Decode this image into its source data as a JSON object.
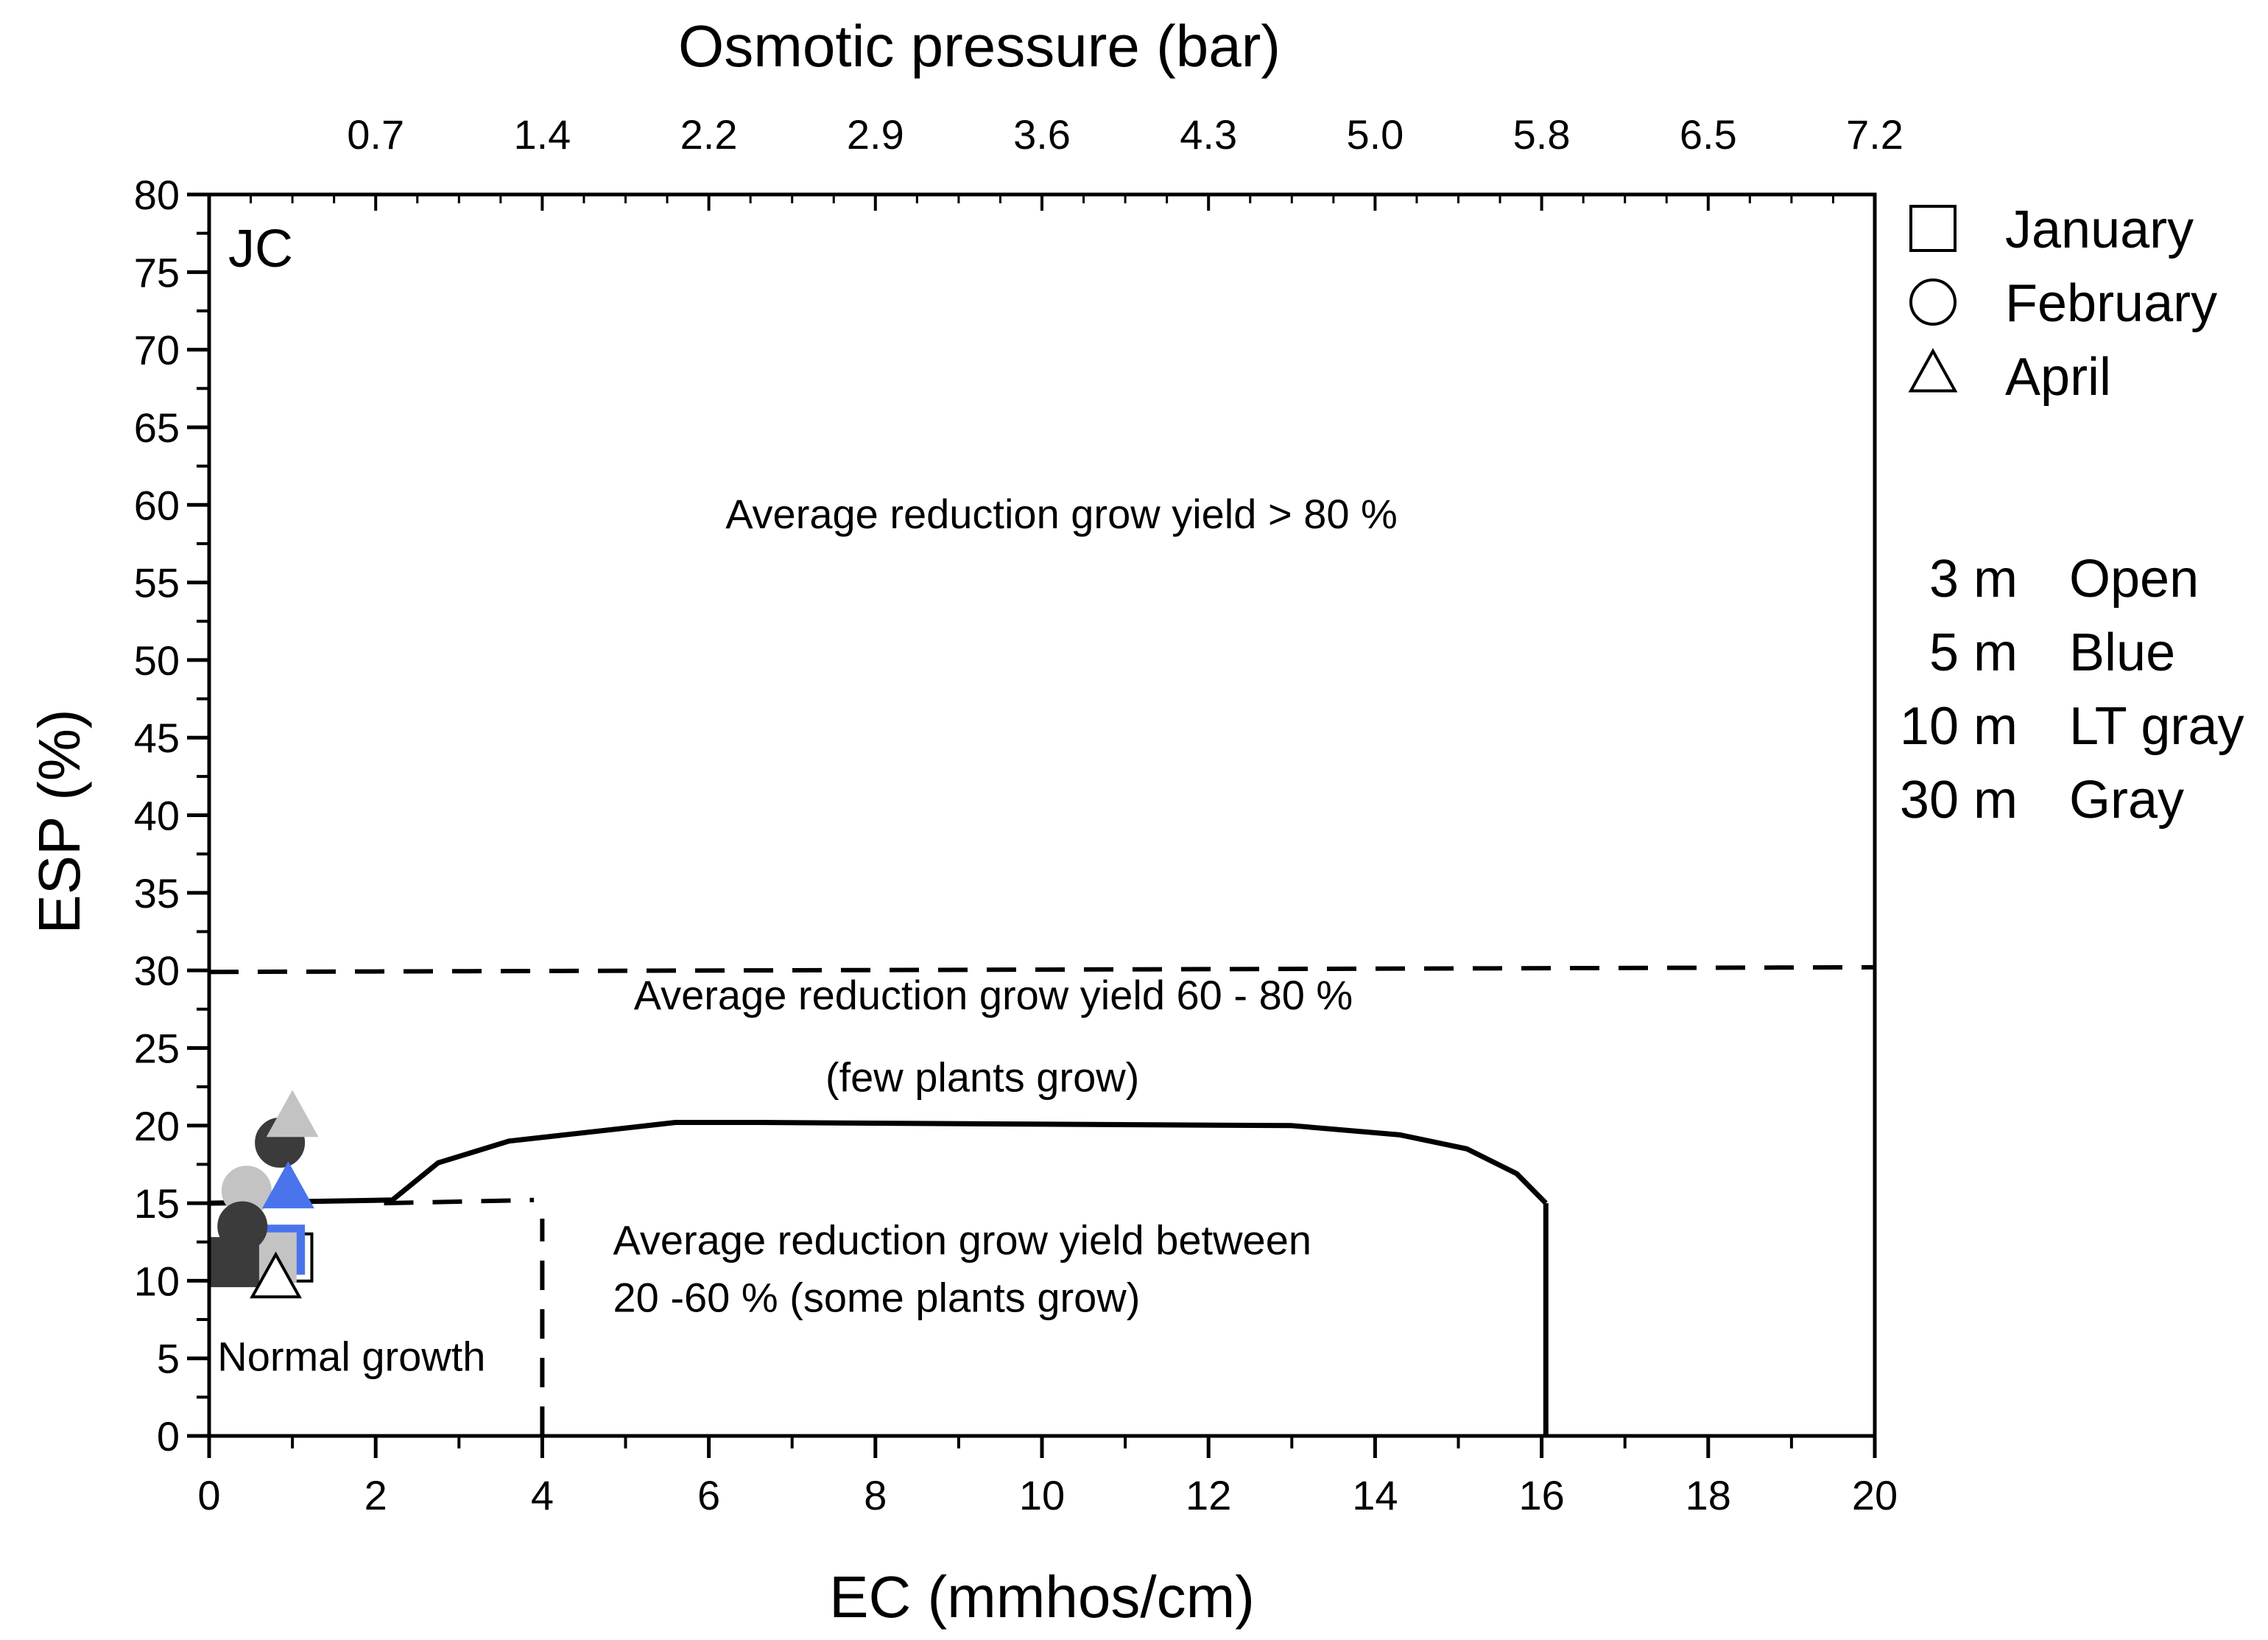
{
  "chart_data": {
    "type": "scatter",
    "panel_label": "JC",
    "x_axis": {
      "label": "EC (mmhos/cm)",
      "range": [
        0,
        20
      ],
      "major_ticks": [
        0,
        2,
        4,
        6,
        8,
        10,
        12,
        14,
        16,
        18,
        20
      ],
      "minor_step": 1
    },
    "y_axis": {
      "label": "ESP (%)",
      "range": [
        0,
        80
      ],
      "major_ticks": [
        0,
        5,
        10,
        15,
        20,
        25,
        30,
        35,
        40,
        45,
        50,
        55,
        60,
        65,
        70,
        75,
        80
      ],
      "minor_step": 2.5
    },
    "top_axis": {
      "label": "Osmotic pressure (bar)",
      "ticks": [
        {
          "ec": 2,
          "label": "0.7"
        },
        {
          "ec": 4,
          "label": "1.4"
        },
        {
          "ec": 6,
          "label": "2.2"
        },
        {
          "ec": 8,
          "label": "2.9"
        },
        {
          "ec": 10,
          "label": "3.6"
        },
        {
          "ec": 12,
          "label": "4.3"
        },
        {
          "ec": 14,
          "label": "5.0"
        },
        {
          "ec": 16,
          "label": "5.8"
        },
        {
          "ec": 18,
          "label": "6.5"
        },
        {
          "ec": 20,
          "label": "7.2"
        }
      ],
      "minor_step": 0.5
    },
    "grid": false,
    "regions": [
      {
        "name": "gt80",
        "label": "Average reduction grow yield > 80 %",
        "anchor": [
          6.2,
          58.5
        ]
      },
      {
        "name": "60-80",
        "label": "Average reduction grow yield 60 - 80 %",
        "anchor": [
          5.1,
          27.5
        ]
      },
      {
        "name": "few-plants",
        "label": "(few plants grow)",
        "anchor": [
          7.4,
          22.2
        ]
      },
      {
        "name": "20-60-line1",
        "label": "Average reduction grow yield between",
        "anchor": [
          4.85,
          11.7
        ]
      },
      {
        "name": "20-60-line2",
        "label": "20 -60 % (some plants grow)",
        "anchor": [
          4.85,
          8.0
        ]
      },
      {
        "name": "normal",
        "label": "Normal growth",
        "anchor": [
          0.1,
          4.2
        ]
      }
    ],
    "boundaries": [
      {
        "name": "esp-30-dashed",
        "style": "dashed",
        "points": [
          [
            0,
            29.9
          ],
          [
            20,
            30.2
          ]
        ]
      },
      {
        "name": "esp-15-dashed",
        "style": "dashed",
        "points": [
          [
            2.1,
            15
          ],
          [
            3.9,
            15.2
          ]
        ]
      },
      {
        "name": "ec-4-dashed",
        "style": "dashed",
        "points": [
          [
            4,
            0
          ],
          [
            4,
            14
          ]
        ]
      },
      {
        "name": "solid-curve",
        "style": "solid",
        "points": [
          [
            0,
            15
          ],
          [
            2.2,
            15.2
          ],
          [
            2.75,
            17.6
          ],
          [
            3.6,
            19
          ],
          [
            4.6,
            19.6
          ],
          [
            5.6,
            20.2
          ],
          [
            6.6,
            20.2
          ],
          [
            9.6,
            20.1
          ],
          [
            13,
            20
          ],
          [
            14.3,
            19.4
          ],
          [
            15.1,
            18.5
          ],
          [
            15.7,
            16.9
          ],
          [
            16.05,
            15
          ]
        ]
      },
      {
        "name": "ec-16-solid",
        "style": "solid",
        "points": [
          [
            16.05,
            15
          ],
          [
            16.05,
            0
          ]
        ]
      }
    ],
    "series": [
      {
        "name": "January 3 m",
        "month": "January",
        "depth": "3 m",
        "marker": "square",
        "color": "open",
        "points": [
          [
            0.95,
            11.5
          ]
        ]
      },
      {
        "name": "January 5 m",
        "month": "January",
        "depth": "5 m",
        "marker": "square",
        "color": "blue",
        "points": [
          [
            0.85,
            12.0
          ]
        ]
      },
      {
        "name": "January 10 m",
        "month": "January",
        "depth": "10 m",
        "marker": "square",
        "color": "light-gray",
        "points": [
          [
            0.75,
            11.5
          ]
        ]
      },
      {
        "name": "January 30 m",
        "month": "January",
        "depth": "30 m",
        "marker": "square",
        "color": "gray",
        "points": [
          [
            0.3,
            11.2
          ]
        ]
      },
      {
        "name": "February 10 m",
        "month": "February",
        "depth": "10 m",
        "marker": "circle",
        "color": "light-gray",
        "points": [
          [
            0.45,
            15.8
          ]
        ]
      },
      {
        "name": "February 30 m",
        "month": "February",
        "depth": "30 m",
        "marker": "circle",
        "color": "gray",
        "points": [
          [
            0.4,
            13.5
          ],
          [
            0.85,
            18.9
          ]
        ]
      },
      {
        "name": "April 3 m",
        "month": "April",
        "depth": "3 m",
        "marker": "triangle",
        "color": "open",
        "points": [
          [
            0.8,
            10.0
          ]
        ]
      },
      {
        "name": "April 5 m",
        "month": "April",
        "depth": "5 m",
        "marker": "triangle",
        "color": "blue",
        "points": [
          [
            0.95,
            15.8
          ]
        ]
      },
      {
        "name": "April 10 m",
        "month": "April",
        "depth": "10 m",
        "marker": "triangle",
        "color": "light-gray",
        "points": [
          [
            1.0,
            20.4
          ]
        ]
      }
    ],
    "legend": {
      "placement": "right",
      "months": [
        {
          "marker": "square",
          "label": "January"
        },
        {
          "marker": "circle",
          "label": "February"
        },
        {
          "marker": "triangle",
          "label": "April"
        }
      ],
      "depth_colors": [
        {
          "depth": "3 m",
          "color_label": "Open"
        },
        {
          "depth": "5 m",
          "color_label": "Blue"
        },
        {
          "depth": "10 m",
          "color_label": "LT gray"
        },
        {
          "depth": "30 m",
          "color_label": "Gray"
        }
      ]
    }
  },
  "colors": {
    "axis": "#000000",
    "open": "#ffffff",
    "blue": "#4a74ec",
    "light-gray": "#c3c3c3",
    "gray": "#3b3b3b"
  }
}
